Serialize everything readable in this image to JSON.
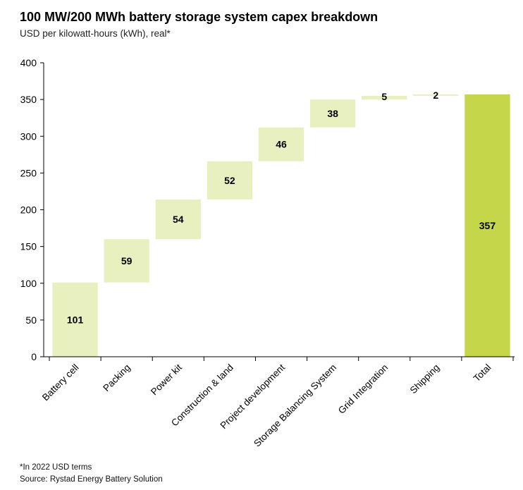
{
  "title": "100 MW/200 MWh battery storage system capex breakdown",
  "subtitle": "USD per kilowatt-hours (kWh), real*",
  "footnotes": {
    "note": "*In 2022 USD terms",
    "source": "Source: Rystad Energy Battery Solution"
  },
  "colors": {
    "increment": "#e9f0c0",
    "total": "#c5d64a",
    "axis": "#000000"
  },
  "chart_data": {
    "type": "bar",
    "subtype": "waterfall",
    "title": "100 MW/200 MWh battery storage system capex breakdown",
    "ylabel": "USD per kilowatt-hours (kWh), real*",
    "xlabel": "",
    "ylim": [
      0,
      400
    ],
    "yticks": [
      0,
      50,
      100,
      150,
      200,
      250,
      300,
      350,
      400
    ],
    "grid": false,
    "legend": "none",
    "categories": [
      "Battery cell",
      "Packing",
      "Power kit",
      "Construction & land",
      "Project development",
      "Storage Balancing System",
      "Grid Integration",
      "Shipping",
      "Total"
    ],
    "values": [
      101,
      59,
      54,
      52,
      46,
      38,
      5,
      2,
      357
    ],
    "is_total": [
      false,
      false,
      false,
      false,
      false,
      false,
      false,
      false,
      true
    ]
  }
}
